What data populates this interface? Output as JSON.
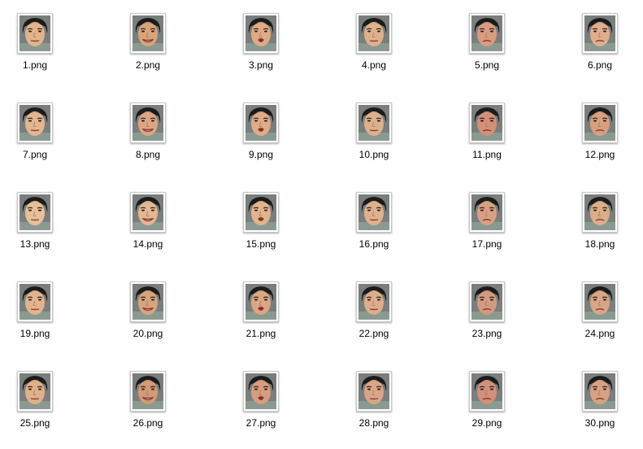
{
  "files": [
    {
      "name": "1.png",
      "mouth": "neutral",
      "skin": "#e2b38c"
    },
    {
      "name": "2.png",
      "mouth": "smile",
      "skin": "#d9a47c"
    },
    {
      "name": "3.png",
      "mouth": "open",
      "skin": "#e0aa86"
    },
    {
      "name": "4.png",
      "mouth": "neutral",
      "skin": "#dfb08c"
    },
    {
      "name": "5.png",
      "mouth": "frown",
      "skin": "#d89c80"
    },
    {
      "name": "6.png",
      "mouth": "frown",
      "skin": "#dfae8c"
    },
    {
      "name": "7.png",
      "mouth": "neutral",
      "skin": "#e2b690"
    },
    {
      "name": "8.png",
      "mouth": "smile",
      "skin": "#dca682"
    },
    {
      "name": "9.png",
      "mouth": "open",
      "skin": "#e0ab88"
    },
    {
      "name": "10.png",
      "mouth": "neutral",
      "skin": "#ddb08e"
    },
    {
      "name": "11.png",
      "mouth": "frown",
      "skin": "#d48f78"
    },
    {
      "name": "12.png",
      "mouth": "frown",
      "skin": "#d8a07e"
    },
    {
      "name": "13.png",
      "mouth": "neutral",
      "skin": "#e6c09a"
    },
    {
      "name": "14.png",
      "mouth": "smile",
      "skin": "#e2b892"
    },
    {
      "name": "15.png",
      "mouth": "open",
      "skin": "#e2b48e"
    },
    {
      "name": "16.png",
      "mouth": "neutral",
      "skin": "#dfb28e"
    },
    {
      "name": "17.png",
      "mouth": "frown",
      "skin": "#d8a082"
    },
    {
      "name": "18.png",
      "mouth": "frown",
      "skin": "#dcae88"
    },
    {
      "name": "19.png",
      "mouth": "neutral",
      "skin": "#e2b48e"
    },
    {
      "name": "20.png",
      "mouth": "smile",
      "skin": "#d8a47e"
    },
    {
      "name": "21.png",
      "mouth": "open",
      "skin": "#dca684"
    },
    {
      "name": "22.png",
      "mouth": "neutral",
      "skin": "#dcae8c"
    },
    {
      "name": "23.png",
      "mouth": "frown",
      "skin": "#d49a80"
    },
    {
      "name": "24.png",
      "mouth": "frown",
      "skin": "#d8a684"
    },
    {
      "name": "25.png",
      "mouth": "neutral",
      "skin": "#dfb08a"
    },
    {
      "name": "26.png",
      "mouth": "smile",
      "skin": "#d29a76"
    },
    {
      "name": "27.png",
      "mouth": "open",
      "skin": "#d89c7e"
    },
    {
      "name": "28.png",
      "mouth": "neutral",
      "skin": "#d8a686"
    },
    {
      "name": "29.png",
      "mouth": "frown",
      "skin": "#d0907a"
    },
    {
      "name": "30.png",
      "mouth": "frown",
      "skin": "#d8a282"
    }
  ]
}
